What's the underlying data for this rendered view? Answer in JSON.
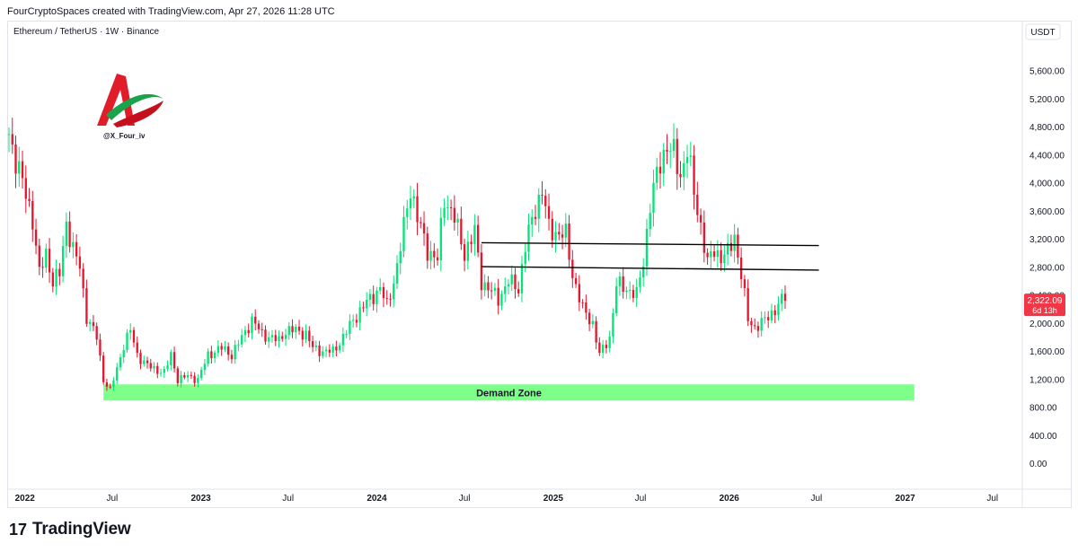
{
  "header": {
    "attribution": "FourCryptoSpaces created with TradingView.com, Apr 27, 2026 11:28 UTC"
  },
  "symbol": {
    "legend": "Ethereum / TetherUS · 1W · Binance",
    "currency_label": "USDT"
  },
  "logo": {
    "handle": "@X_Four_iv",
    "colors": [
      "#e11d2a",
      "#1aa34a"
    ]
  },
  "price_tag": {
    "price": "2,322.09",
    "countdown": "6d 13h",
    "color": "#f23645"
  },
  "footer": {
    "brand": "TradingView",
    "mark": "17"
  },
  "colors": {
    "up": "#00e676",
    "down": "#e5172f",
    "demand_zone": "#7dff8a",
    "trendline": "#000000"
  },
  "chart_data": {
    "type": "candlestick",
    "title": "",
    "xlabel": "",
    "ylabel": "",
    "ylim": [
      -300,
      6100
    ],
    "y_ticks": [
      "5,600.00",
      "5,200.00",
      "4,800.00",
      "4,400.00",
      "4,000.00",
      "3,600.00",
      "3,200.00",
      "2,800.00",
      "2,400.00",
      "2,000.00",
      "1,600.00",
      "1,200.00",
      "800.00",
      "400.00",
      "0.00"
    ],
    "y_tick_values": [
      5600,
      5200,
      4800,
      4400,
      4000,
      3600,
      3200,
      2800,
      2400,
      2000,
      1600,
      1200,
      800,
      400,
      0
    ],
    "x_ticks": [
      {
        "label": "2022",
        "date": "2022-01-01",
        "bold": true
      },
      {
        "label": "Jul",
        "date": "2022-07-01",
        "bold": false
      },
      {
        "label": "2023",
        "date": "2023-01-01",
        "bold": true
      },
      {
        "label": "Jul",
        "date": "2023-07-01",
        "bold": false
      },
      {
        "label": "2024",
        "date": "2024-01-01",
        "bold": true
      },
      {
        "label": "Jul",
        "date": "2024-07-01",
        "bold": false
      },
      {
        "label": "2025",
        "date": "2025-01-01",
        "bold": true
      },
      {
        "label": "Jul",
        "date": "2025-07-01",
        "bold": false
      },
      {
        "label": "2026",
        "date": "2026-01-01",
        "bold": true
      },
      {
        "label": "Jul",
        "date": "2026-07-01",
        "bold": false
      },
      {
        "label": "2027",
        "date": "2027-01-01",
        "bold": true
      },
      {
        "label": "Jul",
        "date": "2027-07-01",
        "bold": false
      }
    ],
    "x_range": [
      "2021-11-29",
      "2027-09-01"
    ],
    "price_path": [
      [
        "2021-11-29",
        4700
      ],
      [
        "2021-12-27",
        4000
      ],
      [
        "2022-01-17",
        3500
      ],
      [
        "2022-01-31",
        2700
      ],
      [
        "2022-02-14",
        3000
      ],
      [
        "2022-02-28",
        2600
      ],
      [
        "2022-03-14",
        2700
      ],
      [
        "2022-03-28",
        3450
      ],
      [
        "2022-04-11",
        3050
      ],
      [
        "2022-04-25",
        2800
      ],
      [
        "2022-05-09",
        2100
      ],
      [
        "2022-05-30",
        1800
      ],
      [
        "2022-06-13",
        1200
      ],
      [
        "2022-06-27",
        1050
      ],
      [
        "2022-07-11",
        1350
      ],
      [
        "2022-07-25",
        1700
      ],
      [
        "2022-08-08",
        1900
      ],
      [
        "2022-08-22",
        1550
      ],
      [
        "2022-09-12",
        1400
      ],
      [
        "2022-09-26",
        1350
      ],
      [
        "2022-10-17",
        1300
      ],
      [
        "2022-10-31",
        1550
      ],
      [
        "2022-11-14",
        1200
      ],
      [
        "2022-12-05",
        1250
      ],
      [
        "2022-12-26",
        1200
      ],
      [
        "2023-01-16",
        1550
      ],
      [
        "2023-02-13",
        1650
      ],
      [
        "2023-03-06",
        1550
      ],
      [
        "2023-03-27",
        1800
      ],
      [
        "2023-04-17",
        2050
      ],
      [
        "2023-05-08",
        1850
      ],
      [
        "2023-06-12",
        1750
      ],
      [
        "2023-06-26",
        1900
      ],
      [
        "2023-07-17",
        1900
      ],
      [
        "2023-08-07",
        1850
      ],
      [
        "2023-08-21",
        1650
      ],
      [
        "2023-09-11",
        1600
      ],
      [
        "2023-10-02",
        1600
      ],
      [
        "2023-10-23",
        1800
      ],
      [
        "2023-11-13",
        2050
      ],
      [
        "2023-12-11",
        2300
      ],
      [
        "2024-01-08",
        2500
      ],
      [
        "2024-01-22",
        2250
      ],
      [
        "2024-02-12",
        2800
      ],
      [
        "2024-03-11",
        3950
      ],
      [
        "2024-03-25",
        3500
      ],
      [
        "2024-04-15",
        3050
      ],
      [
        "2024-05-06",
        2900
      ],
      [
        "2024-05-20",
        3800
      ],
      [
        "2024-06-10",
        3500
      ],
      [
        "2024-07-01",
        3000
      ],
      [
        "2024-07-22",
        3300
      ],
      [
        "2024-08-05",
        2600
      ],
      [
        "2024-08-26",
        2450
      ],
      [
        "2024-09-09",
        2350
      ],
      [
        "2024-09-30",
        2600
      ],
      [
        "2024-10-21",
        2500
      ],
      [
        "2024-11-04",
        3100
      ],
      [
        "2024-11-25",
        3650
      ],
      [
        "2024-12-09",
        3900
      ],
      [
        "2024-12-23",
        3350
      ],
      [
        "2025-01-06",
        3300
      ],
      [
        "2025-01-27",
        3250
      ],
      [
        "2025-02-10",
        2700
      ],
      [
        "2025-03-03",
        2200
      ],
      [
        "2025-03-24",
        2000
      ],
      [
        "2025-04-07",
        1550
      ],
      [
        "2025-04-28",
        1800
      ],
      [
        "2025-05-12",
        2550
      ],
      [
        "2025-06-02",
        2500
      ],
      [
        "2025-06-23",
        2400
      ],
      [
        "2025-07-07",
        2900
      ],
      [
        "2025-07-21",
        3700
      ],
      [
        "2025-08-11",
        4300
      ],
      [
        "2025-08-25",
        4550
      ],
      [
        "2025-09-08",
        4400
      ],
      [
        "2025-09-22",
        4100
      ],
      [
        "2025-10-06",
        4500
      ],
      [
        "2025-10-20",
        3850
      ],
      [
        "2025-11-03",
        3400
      ],
      [
        "2025-11-17",
        2850
      ],
      [
        "2025-12-01",
        3050
      ],
      [
        "2025-12-15",
        2950
      ],
      [
        "2025-12-29",
        3000
      ],
      [
        "2026-01-12",
        3250
      ],
      [
        "2026-01-26",
        2700
      ],
      [
        "2026-02-09",
        2050
      ],
      [
        "2026-02-23",
        1950
      ],
      [
        "2026-03-09",
        2000
      ],
      [
        "2026-03-23",
        2100
      ],
      [
        "2026-04-06",
        2200
      ],
      [
        "2026-04-20",
        2320
      ],
      [
        "2026-04-27",
        2322
      ]
    ],
    "last_price": 2322.09,
    "trendlines": [
      {
        "start": [
          "2024-08-05",
          3150
        ],
        "end": [
          "2026-07-06",
          3110
        ]
      },
      {
        "start": [
          "2024-08-05",
          2810
        ],
        "end": [
          "2026-07-06",
          2760
        ]
      }
    ],
    "demand_zone": {
      "label": "Demand Zone",
      "start": "2022-06-13",
      "end": "2027-01-20",
      "low": 900,
      "high": 1130
    }
  }
}
